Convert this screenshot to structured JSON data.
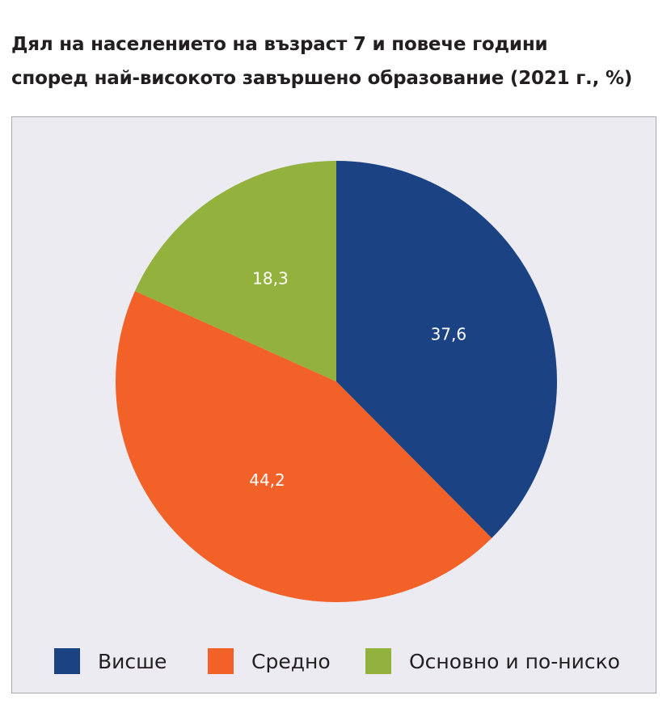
{
  "title_lines": [
    "Дял на населението на възраст 7 и повече години",
    "според най-високото завършено образование (2021 г., %)"
  ],
  "chart_data": {
    "type": "pie",
    "title": "Дял на населението на възраст 7 и повече години според най-високото завършено образование (2021 г., %)",
    "categories": [
      "Висше",
      "Средно",
      "Основно и по-ниско"
    ],
    "values": [
      37.6,
      44.2,
      18.3
    ],
    "value_labels": [
      "37,6",
      "44,2",
      "18,3"
    ],
    "colors": [
      "#1b4283",
      "#f26127",
      "#93b13d"
    ],
    "start_angle_deg": 0,
    "direction": "clockwise",
    "legend_position": "bottom"
  }
}
